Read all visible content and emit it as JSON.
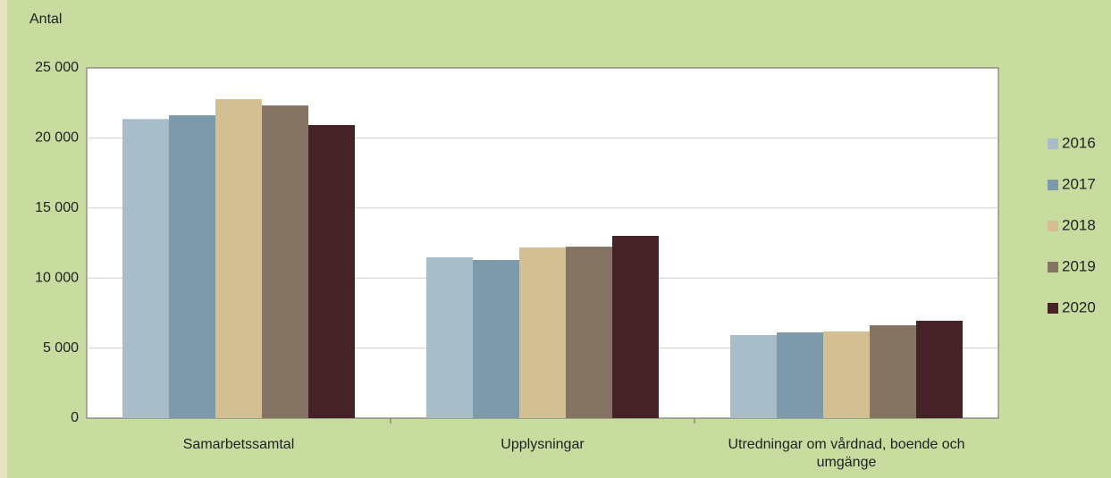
{
  "chart_data": {
    "type": "bar",
    "y_label": "Antal",
    "categories": [
      "Samarbetssamtal",
      "Upplysningar",
      "Utredningar om  vårdnad, boende och umgänge"
    ],
    "series": [
      {
        "name": "2016",
        "color": "#a8bdc7",
        "values": [
          21350,
          11480,
          5930
        ]
      },
      {
        "name": "2017",
        "color": "#7c9aab",
        "values": [
          21620,
          11290,
          6120
        ]
      },
      {
        "name": "2018",
        "color": "#d4bf93",
        "values": [
          22770,
          12180,
          6190
        ]
      },
      {
        "name": "2019",
        "color": "#857363",
        "values": [
          22320,
          12240,
          6630
        ]
      },
      {
        "name": "2020",
        "color": "#452226",
        "values": [
          20920,
          13010,
          6950
        ]
      }
    ],
    "ylim": [
      0,
      25000
    ],
    "yticks": [
      0,
      {
        "value": 5000,
        "label": "5 000"
      },
      {
        "value": 10000,
        "label": "10 000"
      },
      {
        "value": 15000,
        "label": "15 000"
      },
      {
        "value": 20000,
        "label": "20 000"
      },
      {
        "value": 25000,
        "label": "25 000"
      }
    ],
    "grid": true,
    "legend": "right"
  }
}
